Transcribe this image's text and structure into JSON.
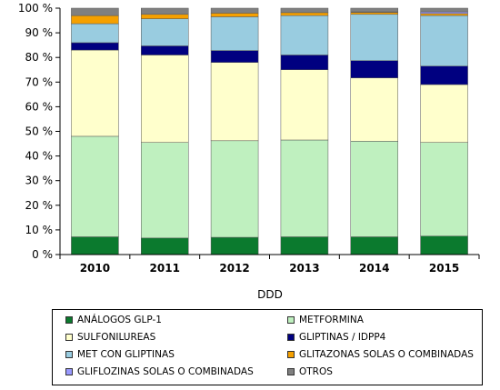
{
  "chart_data": {
    "type": "bar",
    "stacked": true,
    "title": "",
    "xlabel": "DDD",
    "ylabel": "",
    "ylim": [
      0,
      100
    ],
    "yticks": [
      "0 %",
      "10 %",
      "20 %",
      "30 %",
      "40 %",
      "50 %",
      "60 %",
      "70 %",
      "80 %",
      "90 %",
      "100 %"
    ],
    "categories": [
      "2010",
      "2011",
      "2012",
      "2013",
      "2014",
      "2015"
    ],
    "grid": false,
    "legend_position": "bottom",
    "series": [
      {
        "name": "ANÁLOGOS GLP-1",
        "color": "#0b7a2e",
        "values": [
          7.2,
          6.7,
          7.0,
          7.2,
          7.2,
          7.5
        ]
      },
      {
        "name": "METFORMINA",
        "color": "#bff0bf",
        "values": [
          40.8,
          38.8,
          39.2,
          39.3,
          38.8,
          38.0
        ]
      },
      {
        "name": "SULFONILUREAS",
        "color": "#ffffcc",
        "values": [
          35.0,
          35.5,
          31.8,
          28.5,
          25.7,
          23.5
        ]
      },
      {
        "name": "GLIPTINAS / IDPP4",
        "color": "#000080",
        "values": [
          3.0,
          3.7,
          4.8,
          6.0,
          7.0,
          7.5
        ]
      },
      {
        "name": "MET CON GLIPTINAS",
        "color": "#99cce0",
        "values": [
          7.7,
          11.0,
          13.7,
          16.0,
          18.8,
          20.5
        ]
      },
      {
        "name": "GLITAZONAS SOLAS O COMBINADAS",
        "color": "#f5a000",
        "values": [
          3.3,
          1.8,
          1.5,
          1.2,
          0.8,
          0.8
        ]
      },
      {
        "name": "GLIFLOZINAS SOLAS O COMBINADAS",
        "color": "#9999ff",
        "values": [
          0.0,
          0.0,
          0.0,
          0.0,
          0.2,
          0.7
        ]
      },
      {
        "name": "OTROS",
        "color": "#808080",
        "values": [
          3.0,
          2.5,
          2.0,
          1.8,
          1.5,
          1.5
        ]
      }
    ]
  }
}
